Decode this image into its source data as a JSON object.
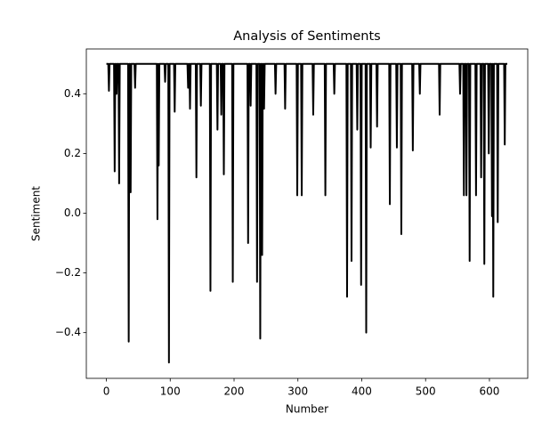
{
  "chart_data": {
    "type": "line",
    "title": "Analysis of Sentiments",
    "x_label": "Number",
    "y_label": "Sentiment",
    "color": "#000000",
    "x": [
      0,
      3,
      4,
      5,
      12,
      13,
      14,
      15,
      16,
      17,
      19,
      20,
      21,
      34,
      35,
      36,
      37,
      38,
      39,
      44,
      45,
      46,
      79,
      80,
      81,
      82,
      83,
      91,
      92,
      93,
      97,
      98,
      99,
      106,
      107,
      108,
      127,
      128,
      129,
      130,
      131,
      132,
      140,
      141,
      142,
      147,
      148,
      149,
      162,
      163,
      164,
      173,
      174,
      175,
      179,
      180,
      181,
      183,
      184,
      185,
      197,
      198,
      199,
      221,
      222,
      223,
      225,
      226,
      227,
      235,
      236,
      237,
      240,
      241,
      242,
      243,
      244,
      245,
      246,
      247,
      248,
      264,
      265,
      266,
      279,
      280,
      281,
      298,
      299,
      300,
      305,
      306,
      307,
      323,
      324,
      325,
      342,
      343,
      344,
      356,
      357,
      358,
      376,
      377,
      378,
      383,
      384,
      385,
      392,
      393,
      394,
      398,
      399,
      400,
      406,
      407,
      408,
      413,
      414,
      415,
      423,
      424,
      425,
      443,
      444,
      445,
      454,
      455,
      456,
      461,
      462,
      463,
      479,
      480,
      481,
      490,
      491,
      492,
      521,
      522,
      523,
      553,
      554,
      555,
      559,
      560,
      561,
      563,
      564,
      565,
      568,
      569,
      570,
      578,
      579,
      580,
      586,
      587,
      588,
      591,
      592,
      593,
      598,
      599,
      600,
      603,
      604,
      605,
      606,
      607,
      612,
      613,
      614,
      623,
      624,
      625,
      628
    ],
    "values": [
      0.5,
      0.5,
      0.41,
      0.5,
      0.5,
      0.14,
      0.5,
      0.5,
      0.4,
      0.5,
      0.5,
      0.1,
      0.5,
      0.5,
      -0.43,
      0.5,
      0.5,
      0.07,
      0.5,
      0.5,
      0.42,
      0.5,
      0.5,
      -0.02,
      0.5,
      0.16,
      0.5,
      0.5,
      0.44,
      0.5,
      0.5,
      -0.5,
      0.5,
      0.5,
      0.34,
      0.5,
      0.5,
      0.42,
      0.5,
      0.5,
      0.35,
      0.5,
      0.5,
      0.12,
      0.5,
      0.5,
      0.36,
      0.5,
      0.5,
      -0.26,
      0.5,
      0.5,
      0.28,
      0.5,
      0.5,
      0.33,
      0.5,
      0.5,
      0.13,
      0.5,
      0.5,
      -0.23,
      0.5,
      0.5,
      -0.1,
      0.5,
      0.5,
      0.36,
      0.5,
      0.5,
      -0.23,
      0.5,
      0.5,
      -0.42,
      0.5,
      0.5,
      -0.14,
      0.5,
      0.5,
      0.35,
      0.5,
      0.5,
      0.4,
      0.5,
      0.5,
      0.35,
      0.5,
      0.5,
      0.06,
      0.5,
      0.5,
      0.06,
      0.5,
      0.5,
      0.33,
      0.5,
      0.5,
      0.06,
      0.5,
      0.5,
      0.4,
      0.5,
      0.5,
      -0.28,
      0.5,
      0.5,
      -0.16,
      0.5,
      0.5,
      0.28,
      0.5,
      0.5,
      -0.24,
      0.5,
      0.5,
      -0.4,
      0.5,
      0.5,
      0.22,
      0.5,
      0.5,
      0.29,
      0.5,
      0.5,
      0.03,
      0.5,
      0.5,
      0.22,
      0.5,
      0.5,
      -0.07,
      0.5,
      0.5,
      0.21,
      0.5,
      0.5,
      0.4,
      0.5,
      0.5,
      0.33,
      0.5,
      0.5,
      0.4,
      0.5,
      0.5,
      0.06,
      0.5,
      0.5,
      0.06,
      0.5,
      0.5,
      -0.16,
      0.5,
      0.5,
      0.06,
      0.5,
      0.5,
      0.12,
      0.5,
      0.5,
      -0.17,
      0.5,
      0.5,
      0.2,
      0.5,
      0.5,
      -0.01,
      0.5,
      -0.28,
      0.5,
      0.5,
      -0.03,
      0.5,
      0.5,
      0.23,
      0.5,
      0.5
    ],
    "xlim": [
      -31.4,
      660
    ],
    "ylim": [
      -0.553,
      0.55
    ],
    "xticks": [
      0,
      100,
      200,
      300,
      400,
      500,
      600
    ],
    "yticks": [
      {
        "value": -0.4,
        "label": "−0.4"
      },
      {
        "value": -0.2,
        "label": "−0.2"
      },
      {
        "value": 0,
        "label": "0.0"
      },
      0.2,
      0.4
    ]
  }
}
